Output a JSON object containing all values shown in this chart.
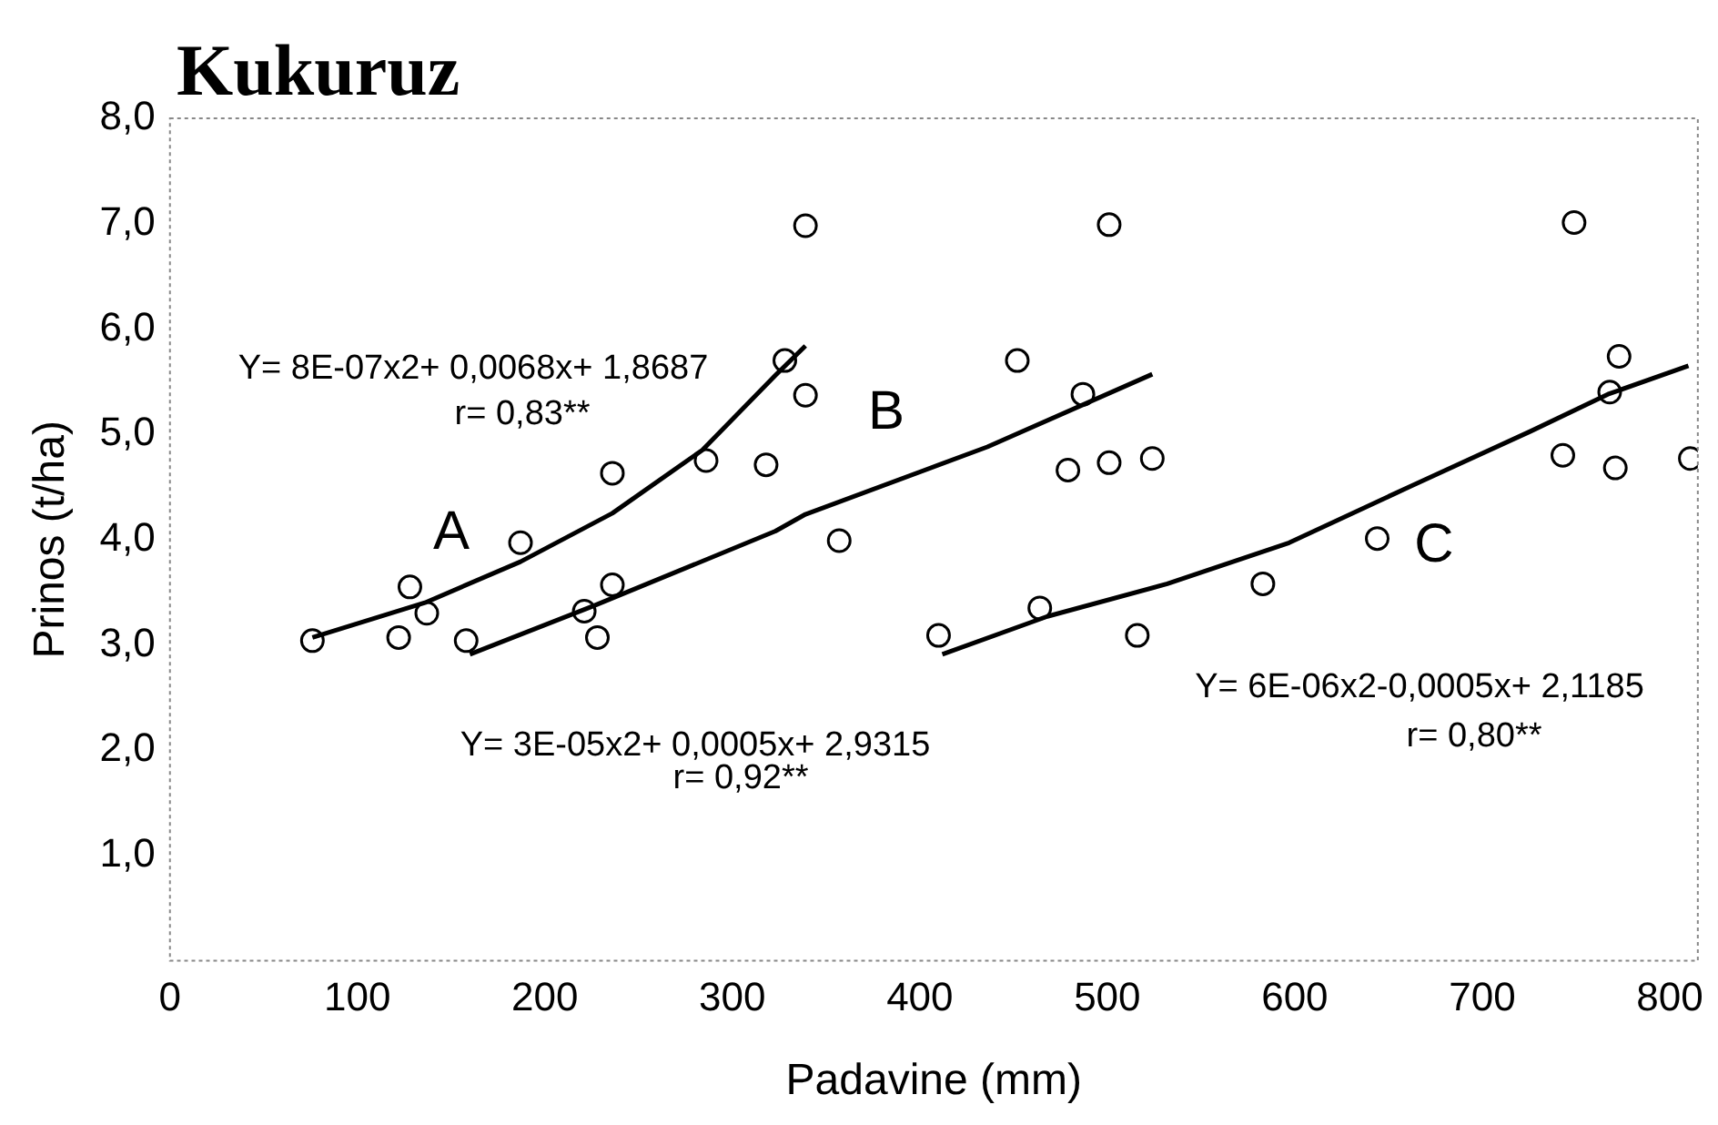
{
  "chart_data": {
    "type": "scatter",
    "title": "Kukuruz",
    "xlabel": "Padavine (mm)",
    "ylabel": "Prinos (t/ha)",
    "xlim": [
      0,
      815
    ],
    "xticks": [
      0,
      100,
      200,
      300,
      400,
      500,
      600,
      700,
      800
    ],
    "ylim": [
      0,
      8
    ],
    "yticks": [
      {
        "value": 1,
        "label": "1,0"
      },
      {
        "value": 2,
        "label": "2,0"
      },
      {
        "value": 3,
        "label": "3,0"
      },
      {
        "value": 4,
        "label": "4,0"
      },
      {
        "value": 5,
        "label": "5,0"
      },
      {
        "value": 6,
        "label": "6,0"
      },
      {
        "value": 7,
        "label": "7,0"
      },
      {
        "value": 8,
        "label": "8,0"
      }
    ],
    "grid": false,
    "legend": false,
    "marker": "circle",
    "series": [
      {
        "color": "#000000",
        "x": [
          76,
          122,
          128,
          137,
          158,
          187,
          221,
          228,
          236,
          236,
          286,
          318,
          339,
          328,
          339,
          357,
          452,
          487,
          479,
          501,
          524,
          501,
          410,
          464,
          516,
          583,
          644,
          743,
          749,
          773,
          768,
          771,
          811
        ],
        "values": [
          3.04,
          3.07,
          3.55,
          3.3,
          3.04,
          3.97,
          3.32,
          3.07,
          3.57,
          4.63,
          4.75,
          4.71,
          6.98,
          5.7,
          5.37,
          3.99,
          5.7,
          5.38,
          4.66,
          4.73,
          4.77,
          6.99,
          3.09,
          3.35,
          3.09,
          3.58,
          4.01,
          4.8,
          7.01,
          5.74,
          5.4,
          4.68,
          4.77
        ]
      },
      {
        "type": "line",
        "marker": "none",
        "color": "#000000",
        "x": [
          76,
          136,
          187,
          236,
          284,
          323,
          339
        ],
        "values": [
          3.07,
          3.4,
          3.79,
          4.25,
          4.85,
          5.56,
          5.84
        ]
      },
      {
        "type": "line",
        "marker": "none",
        "color": "#000000",
        "x": [
          160,
          226,
          323,
          339,
          436,
          524
        ],
        "values": [
          2.91,
          3.37,
          4.08,
          4.24,
          4.88,
          5.57
        ]
      },
      {
        "type": "line",
        "marker": "none",
        "color": "#000000",
        "x": [
          412,
          468,
          532,
          597,
          661,
          726,
          767,
          810
        ],
        "values": [
          2.91,
          3.27,
          3.58,
          3.97,
          4.5,
          5.03,
          5.38,
          5.65
        ]
      }
    ],
    "annotations": [
      "A",
      "B",
      "C",
      "Y= 8E-07x2+ 0,0068x+ 1,8687",
      "r= 0,83**",
      "Y= 3E-05x2+ 0,0005x+ 2,9315",
      "r= 0,92**",
      "Y= 6E-06x2-0,0005x+ 2,1185",
      "r= 0,80**"
    ]
  }
}
